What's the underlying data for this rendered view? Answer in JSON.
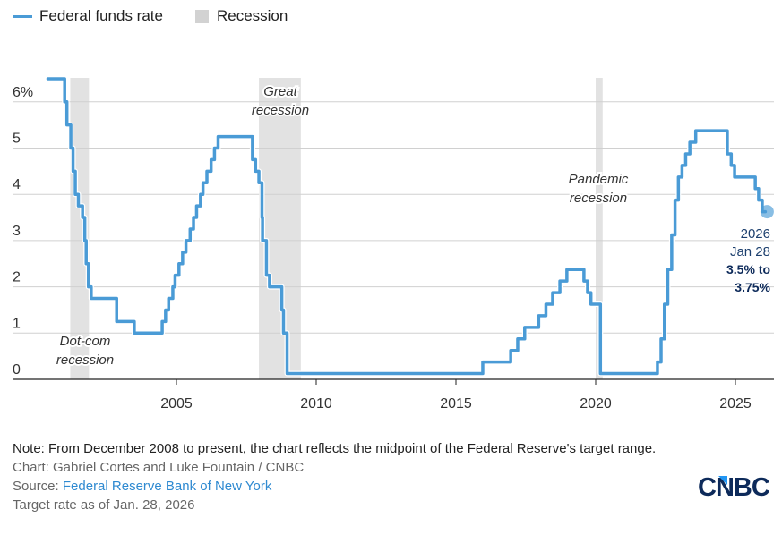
{
  "legend": [
    {
      "label": "Federal funds rate",
      "kind": "line",
      "color": "#4a9bd6"
    },
    {
      "label": "Recession",
      "kind": "area",
      "color": "#d2d2d2"
    }
  ],
  "chart_data": {
    "type": "line",
    "title": "",
    "xlabel": "",
    "ylabel": "",
    "xlim": [
      2000.0,
      2026.4
    ],
    "ylim": [
      0,
      6.5
    ],
    "grid": true,
    "y_ticks": [
      {
        "value": 0,
        "label": "0"
      },
      {
        "value": 1,
        "label": "1"
      },
      {
        "value": 2,
        "label": "2"
      },
      {
        "value": 3,
        "label": "3"
      },
      {
        "value": 4,
        "label": "4"
      },
      {
        "value": 5,
        "label": "5"
      },
      {
        "value": 6,
        "label": "6%"
      }
    ],
    "x_ticks": [
      {
        "value": 2005,
        "label": "2005"
      },
      {
        "value": 2010,
        "label": "2010"
      },
      {
        "value": 2015,
        "label": "2015"
      },
      {
        "value": 2020,
        "label": "2020"
      },
      {
        "value": 2025,
        "label": "2025"
      }
    ],
    "recessions": [
      {
        "name": "Dot-com recession",
        "label_lines": [
          "Dot-com",
          "recession"
        ],
        "start": 2001.2,
        "end": 2001.87,
        "label_position": "bottom"
      },
      {
        "name": "Great recession",
        "label_lines": [
          "Great",
          "recession"
        ],
        "start": 2007.95,
        "end": 2009.45,
        "label_position": "top"
      },
      {
        "name": "Pandemic recession",
        "label_lines": [
          "Pandemic",
          "recession"
        ],
        "start": 2020.0,
        "end": 2020.25,
        "label_position": "middle"
      }
    ],
    "series": [
      {
        "name": "Federal funds rate",
        "step": true,
        "color": "#4a9bd6",
        "points": [
          [
            2000.4,
            6.5
          ],
          [
            2001.0,
            6.0
          ],
          [
            2001.08,
            5.5
          ],
          [
            2001.22,
            5.0
          ],
          [
            2001.3,
            4.5
          ],
          [
            2001.38,
            4.0
          ],
          [
            2001.49,
            3.75
          ],
          [
            2001.64,
            3.5
          ],
          [
            2001.72,
            3.0
          ],
          [
            2001.77,
            2.5
          ],
          [
            2001.85,
            2.0
          ],
          [
            2001.95,
            1.75
          ],
          [
            2002.86,
            1.25
          ],
          [
            2003.49,
            1.0
          ],
          [
            2004.49,
            1.25
          ],
          [
            2004.61,
            1.5
          ],
          [
            2004.72,
            1.75
          ],
          [
            2004.87,
            2.0
          ],
          [
            2004.95,
            2.25
          ],
          [
            2005.09,
            2.5
          ],
          [
            2005.22,
            2.75
          ],
          [
            2005.34,
            3.0
          ],
          [
            2005.49,
            3.25
          ],
          [
            2005.61,
            3.5
          ],
          [
            2005.72,
            3.75
          ],
          [
            2005.86,
            4.0
          ],
          [
            2005.95,
            4.25
          ],
          [
            2006.09,
            4.5
          ],
          [
            2006.24,
            4.75
          ],
          [
            2006.36,
            5.0
          ],
          [
            2006.49,
            5.25
          ],
          [
            2007.72,
            4.75
          ],
          [
            2007.83,
            4.5
          ],
          [
            2007.95,
            4.25
          ],
          [
            2008.06,
            3.5
          ],
          [
            2008.08,
            3.0
          ],
          [
            2008.22,
            2.25
          ],
          [
            2008.33,
            2.0
          ],
          [
            2008.77,
            1.5
          ],
          [
            2008.83,
            1.0
          ],
          [
            2008.96,
            0.125
          ],
          [
            2015.96,
            0.375
          ],
          [
            2016.96,
            0.625
          ],
          [
            2017.21,
            0.875
          ],
          [
            2017.46,
            1.125
          ],
          [
            2017.96,
            1.375
          ],
          [
            2018.22,
            1.625
          ],
          [
            2018.46,
            1.875
          ],
          [
            2018.72,
            2.125
          ],
          [
            2018.97,
            2.375
          ],
          [
            2019.58,
            2.125
          ],
          [
            2019.71,
            1.875
          ],
          [
            2019.83,
            1.625
          ],
          [
            2020.17,
            0.125
          ],
          [
            2022.21,
            0.375
          ],
          [
            2022.34,
            0.875
          ],
          [
            2022.46,
            1.625
          ],
          [
            2022.58,
            2.375
          ],
          [
            2022.72,
            3.125
          ],
          [
            2022.84,
            3.875
          ],
          [
            2022.96,
            4.375
          ],
          [
            2023.09,
            4.625
          ],
          [
            2023.22,
            4.875
          ],
          [
            2023.37,
            5.125
          ],
          [
            2023.58,
            5.375
          ],
          [
            2024.71,
            4.875
          ],
          [
            2024.85,
            4.625
          ],
          [
            2024.97,
            4.375
          ],
          [
            2025.71,
            4.125
          ],
          [
            2025.83,
            3.875
          ],
          [
            2025.96,
            3.625
          ],
          [
            2026.07,
            3.625
          ]
        ]
      }
    ],
    "annotations": [
      {
        "x": 2026.07,
        "y": 3.625,
        "lines": [
          "2026",
          "Jan 28"
        ],
        "bold_lines": [
          "3.5% to",
          "3.75%"
        ]
      }
    ]
  },
  "footer": {
    "note": "Note: From December 2008 to present, the chart reflects the midpoint of the Federal Reserve's target range.",
    "credit": "Chart: Gabriel Cortes and Luke Fountain / CNBC",
    "source_prefix": "Source: ",
    "source_link": "Federal Reserve Bank of New York",
    "as_of": "Target rate as of Jan. 28, 2026"
  },
  "logo": {
    "text": "CNBC",
    "color": "#0d2a5a",
    "accent": "#2196f3"
  }
}
